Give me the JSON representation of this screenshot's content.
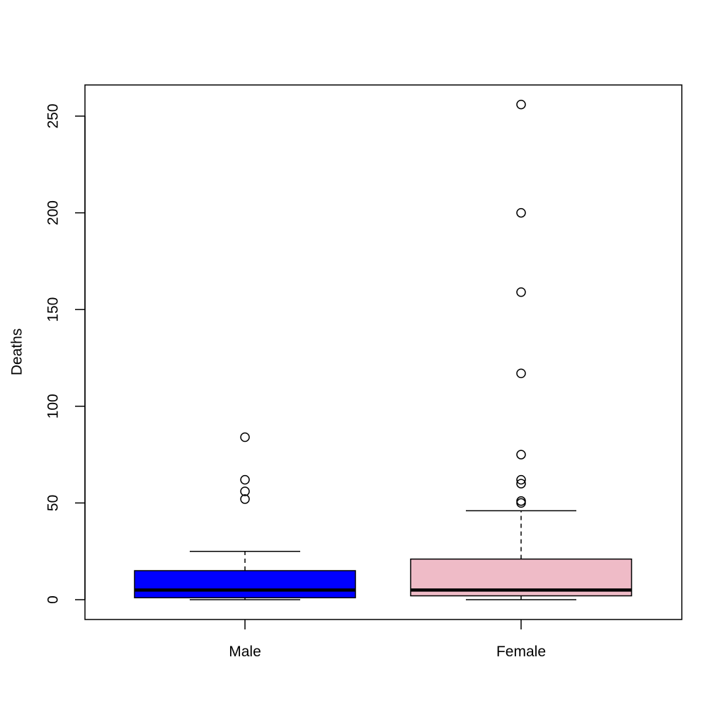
{
  "chart_data": {
    "type": "box",
    "title": "",
    "xlabel": "",
    "ylabel": "Deaths",
    "ylim": [
      -10,
      268
    ],
    "y_ticks": [
      0,
      50,
      100,
      150,
      200,
      250
    ],
    "grid": false,
    "categories": [
      "Male",
      "Female"
    ],
    "boxes": [
      {
        "category": "Male",
        "color": "#0000ff",
        "whisker_low": 0,
        "q1": 1,
        "median": 5,
        "q3": 15,
        "whisker_high": 25,
        "outliers": [
          52,
          56,
          62,
          84
        ]
      },
      {
        "category": "Female",
        "color": "#efbbc7",
        "whisker_low": 0,
        "q1": 2,
        "median": 5,
        "q3": 21,
        "whisker_high": 46,
        "outliers": [
          50,
          51,
          60,
          62,
          75,
          117,
          159,
          200,
          256
        ]
      }
    ]
  }
}
